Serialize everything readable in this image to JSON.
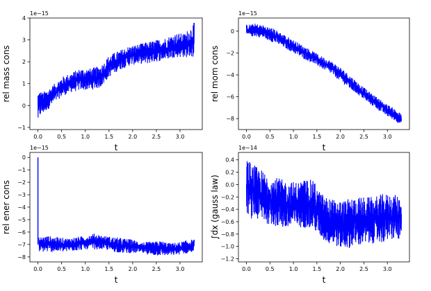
{
  "figure": {
    "background": "#ffffff",
    "series_color": "#0000ff"
  },
  "chart_data": [
    {
      "type": "line",
      "title": "",
      "xlabel": "t",
      "ylabel": "rel mass cons",
      "offset_label": "1e−15",
      "xlim": [
        -0.17,
        3.47
      ],
      "ylim": [
        -1.1e-15,
        4e-15
      ],
      "xticks": [
        0.0,
        0.5,
        1.0,
        1.5,
        2.0,
        2.5,
        3.0
      ],
      "xtick_labels": [
        "0.0",
        "0.5",
        "1.0",
        "1.5",
        "2.0",
        "2.5",
        "3.0"
      ],
      "yticks": [
        -1e-15,
        0,
        1e-15,
        2e-15,
        3e-15,
        4e-15
      ],
      "ytick_labels": [
        "−1",
        "0",
        "1",
        "2",
        "3",
        "4"
      ],
      "grid": false,
      "series": [
        {
          "color": "#0000ff",
          "band": {
            "t": [
              0.0,
              0.05,
              0.1,
              0.3,
              0.5,
              0.7,
              0.9,
              1.1,
              1.3,
              1.4,
              1.5,
              1.7,
              1.9,
              2.1,
              2.3,
              2.5,
              2.7,
              2.9,
              3.1,
              3.3
            ],
            "low": [
              -8e-16,
              -5e-16,
              -4e-16,
              0.0,
              4e-16,
              6e-16,
              7e-16,
              7e-16,
              8e-16,
              1e-15,
              1.3e-15,
              1.6e-15,
              1.8e-15,
              1.9e-15,
              1.9e-15,
              2e-15,
              2.1e-15,
              2.2e-15,
              2.2e-15,
              2.2e-15
            ],
            "high": [
              7e-16,
              7e-16,
              6e-16,
              9e-16,
              1.3e-15,
              1.5e-15,
              1.7e-15,
              1.7e-15,
              1.8e-15,
              2e-15,
              2.3e-15,
              2.5e-15,
              2.7e-15,
              2.8e-15,
              2.9e-15,
              3e-15,
              3.1e-15,
              3.3e-15,
              3.3e-15,
              3.8e-15
            ]
          }
        }
      ]
    },
    {
      "type": "line",
      "title": "",
      "xlabel": "t",
      "ylabel": "rel mom cons",
      "offset_label": "1e−15",
      "xlim": [
        -0.17,
        3.47
      ],
      "ylim": [
        -9e-15,
        1.2e-15
      ],
      "xticks": [
        0.0,
        0.5,
        1.0,
        1.5,
        2.0,
        2.5,
        3.0
      ],
      "xtick_labels": [
        "0.0",
        "0.5",
        "1.0",
        "1.5",
        "2.0",
        "2.5",
        "3.0"
      ],
      "yticks": [
        -8e-15,
        -6e-15,
        -4e-15,
        -2e-15,
        0
      ],
      "ytick_labels": [
        "−8",
        "−6",
        "−4",
        "−2",
        "0"
      ],
      "grid": false,
      "series": [
        {
          "color": "#0000ff",
          "band": {
            "t": [
              0.0,
              0.2,
              0.4,
              0.6,
              0.8,
              1.0,
              1.2,
              1.4,
              1.6,
              1.8,
              2.0,
              2.2,
              2.4,
              2.6,
              2.8,
              3.0,
              3.2,
              3.3
            ],
            "low": [
              -5e-16,
              -5e-16,
              -7e-16,
              -1.1e-15,
              -1.5e-15,
              -2e-15,
              -2.5e-15,
              -2.9e-15,
              -3.4e-15,
              -3.9e-15,
              -4.6e-15,
              -5.3e-15,
              -5.9e-15,
              -6.6e-15,
              -7.2e-15,
              -7.8e-15,
              -8.3e-15,
              -8.6e-15
            ],
            "high": [
              6e-16,
              7e-16,
              5e-16,
              2e-16,
              -3e-16,
              -8e-16,
              -1.3e-15,
              -1.8e-15,
              -2.3e-15,
              -2.7e-15,
              -3.3e-15,
              -4e-15,
              -4.8e-15,
              -5.5e-15,
              -6.1e-15,
              -6.7e-15,
              -7.2e-15,
              -7.6e-15
            ]
          }
        }
      ]
    },
    {
      "type": "line",
      "title": "",
      "xlabel": "t",
      "ylabel": "rel ener cons",
      "offset_label": "1e−15",
      "xlim": [
        -0.17,
        3.47
      ],
      "ylim": [
        -8.4e-15,
        4e-16
      ],
      "xticks": [
        0.0,
        0.5,
        1.0,
        1.5,
        2.0,
        2.5,
        3.0
      ],
      "xtick_labels": [
        "0.0",
        "0.5",
        "1.0",
        "1.5",
        "2.0",
        "2.5",
        "3.0"
      ],
      "yticks": [
        -8e-15,
        -7e-15,
        -6e-15,
        -5e-15,
        -4e-15,
        -3e-15,
        -2e-15,
        -1e-15,
        0
      ],
      "ytick_labels": [
        "−8",
        "−7",
        "−6",
        "−5",
        "−4",
        "−3",
        "−2",
        "−1",
        "0"
      ],
      "grid": false,
      "spike": {
        "t": 0.0,
        "from": 0.0,
        "to": -7e-15
      },
      "series": [
        {
          "color": "#0000ff",
          "band": {
            "t": [
              0.02,
              0.2,
              0.4,
              0.6,
              0.8,
              1.0,
              1.2,
              1.4,
              1.6,
              1.8,
              2.0,
              2.2,
              2.4,
              2.6,
              2.8,
              3.0,
              3.2,
              3.3
            ],
            "low": [
              -7.6e-15,
              -7.6e-15,
              -7.6e-15,
              -7.6e-15,
              -7.5e-15,
              -7.4e-15,
              -7.4e-15,
              -7.4e-15,
              -7.6e-15,
              -7.7e-15,
              -7.7e-15,
              -7.7e-15,
              -7.9e-15,
              -7.9e-15,
              -7.9e-15,
              -7.8e-15,
              -7.7e-15,
              -7.6e-15
            ],
            "high": [
              -6.4e-15,
              -6.3e-15,
              -6.4e-15,
              -6.5e-15,
              -6.4e-15,
              -6.3e-15,
              -6.1e-15,
              -6.3e-15,
              -6.4e-15,
              -6.5e-15,
              -6.6e-15,
              -6.8e-15,
              -6.8e-15,
              -6.7e-15,
              -6.9e-15,
              -6.8e-15,
              -6.6e-15,
              -6.6e-15
            ]
          }
        }
      ]
    },
    {
      "type": "line",
      "title": "",
      "xlabel": "t",
      "ylabel": "∫dx (gauss law)",
      "offset_label": "1e−14",
      "xlim": [
        -0.17,
        3.47
      ],
      "ylim": [
        -1.25e-14,
        5.2e-15
      ],
      "xticks": [
        0.0,
        0.5,
        1.0,
        1.5,
        2.0,
        2.5,
        3.0
      ],
      "xtick_labels": [
        "0.0",
        "0.5",
        "1.0",
        "1.5",
        "2.0",
        "2.5",
        "3.0"
      ],
      "yticks": [
        -1.2e-14,
        -1e-14,
        -8e-15,
        -6e-15,
        -4e-15,
        -2e-15,
        0,
        2e-15,
        4e-15
      ],
      "ytick_labels": [
        "−1.2",
        "−1.0",
        "−0.8",
        "−0.6",
        "−0.4",
        "−0.2",
        "0.0",
        "0.2",
        "0.4"
      ],
      "grid": false,
      "series": [
        {
          "color": "#0000ff",
          "band": {
            "t": [
              0.0,
              0.1,
              0.3,
              0.5,
              0.7,
              0.9,
              1.1,
              1.3,
              1.45,
              1.55,
              1.7,
              1.9,
              2.1,
              2.3,
              2.5,
              2.7,
              2.9,
              3.1,
              3.3
            ],
            "low": [
              -4.5e-15,
              -5.5e-15,
              -6e-15,
              -6.5e-15,
              -7e-15,
              -7.5e-15,
              -7e-15,
              -7e-15,
              -7.5e-15,
              -8.5e-15,
              -9.5e-15,
              -1e-14,
              -1.05e-14,
              -1e-14,
              -1e-14,
              -9.5e-15,
              -9.5e-15,
              -9e-15,
              -9e-15
            ],
            "high": [
              4.5e-15,
              3.5e-15,
              2.5e-15,
              1.5e-15,
              1e-15,
              5e-16,
              5e-16,
              1e-15,
              5e-16,
              -1e-15,
              -2e-15,
              -2.5e-15,
              -2.5e-15,
              -2e-15,
              -2e-15,
              -2e-15,
              -1.5e-15,
              -1.5e-15,
              -2e-15
            ]
          }
        }
      ]
    }
  ]
}
